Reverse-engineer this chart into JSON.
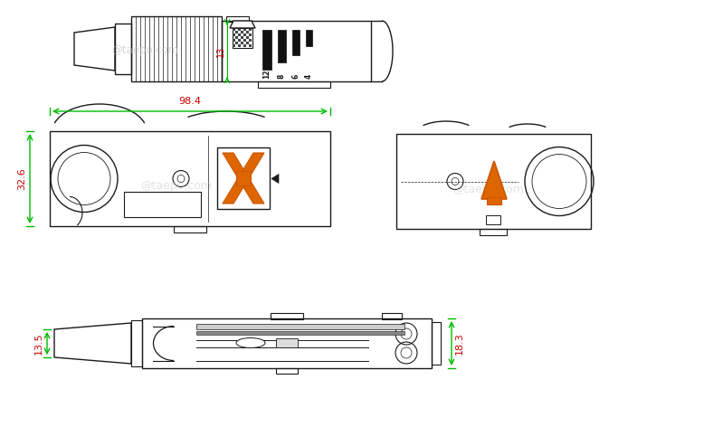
{
  "bg_color": "#ffffff",
  "line_color": "#1a1a1a",
  "green_color": "#00bb00",
  "red_color": "#cc0000",
  "orange_color": "#cc5500",
  "orange_fill": "#dd6600",
  "watermark1": "@taepo.com",
  "watermark2": "@taepo.com",
  "dim_98_4": "98.4",
  "dim_32_6": "32.6",
  "dim_13": "13",
  "dim_13_5": "13.5",
  "dim_18_3": "18.3",
  "blade_labels": [
    "12",
    "8",
    "6",
    "4"
  ],
  "figw": 7.78,
  "figh": 4.72,
  "dpi": 100
}
